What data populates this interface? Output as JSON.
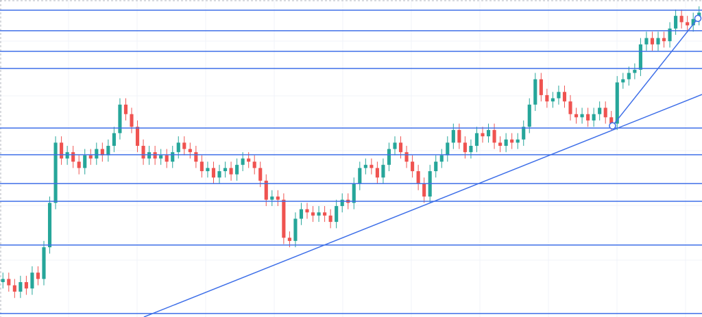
{
  "chart_data": {
    "type": "candlestick",
    "xlim": [
      0,
      120
    ],
    "ylim": [
      0,
      100
    ],
    "up_color": "#26a69a",
    "down_color": "#ef5350",
    "line_color": "#3d6ee8",
    "open": [
      11,
      12,
      10,
      8,
      11,
      9,
      14,
      12,
      22,
      36,
      55,
      50,
      52,
      49,
      47,
      51,
      50,
      53,
      51,
      54,
      58,
      67,
      64,
      60,
      54,
      50,
      52,
      50,
      51,
      49,
      52,
      55,
      53,
      52,
      49,
      46,
      47,
      44,
      46,
      47,
      45,
      48,
      50,
      49,
      47,
      43,
      37,
      38,
      37,
      25,
      24,
      31,
      34,
      33,
      32,
      33,
      32,
      30,
      35,
      37,
      36,
      42,
      47,
      48,
      47,
      44,
      48,
      53,
      55,
      52,
      49,
      46,
      42,
      38,
      46,
      49,
      51,
      55,
      59,
      55,
      52,
      54,
      58,
      57,
      59,
      55,
      54,
      56,
      55,
      56,
      60,
      67,
      75,
      70,
      68,
      69,
      71,
      68,
      64,
      63,
      64,
      62,
      64,
      66,
      63,
      61,
      74,
      75,
      77,
      78,
      86,
      88,
      86,
      88,
      87,
      91,
      95,
      93,
      92,
      94
    ],
    "high": [
      14,
      14,
      12,
      13,
      13,
      16,
      16,
      24,
      38,
      57,
      57,
      54,
      54,
      51,
      53,
      53,
      55,
      55,
      56,
      60,
      69,
      69,
      66,
      62,
      56,
      54,
      54,
      53,
      53,
      54,
      57,
      57,
      55,
      54,
      51,
      49,
      49,
      48,
      49,
      49,
      50,
      52,
      52,
      51,
      49,
      45,
      40,
      40,
      39,
      27,
      33,
      36,
      36,
      35,
      35,
      35,
      34,
      37,
      39,
      39,
      44,
      49,
      50,
      50,
      49,
      50,
      55,
      57,
      57,
      54,
      51,
      48,
      44,
      48,
      51,
      53,
      57,
      61,
      61,
      57,
      56,
      60,
      60,
      61,
      61,
      57,
      58,
      58,
      58,
      62,
      69,
      77,
      77,
      72,
      71,
      73,
      73,
      70,
      66,
      66,
      66,
      66,
      68,
      68,
      65,
      76,
      77,
      79,
      80,
      88,
      90,
      90,
      90,
      90,
      93,
      97,
      97,
      95,
      96,
      98
    ],
    "low": [
      9,
      8,
      6,
      6,
      7,
      7,
      10,
      10,
      20,
      34,
      48,
      48,
      47,
      45,
      45,
      48,
      48,
      49,
      49,
      52,
      56,
      62,
      58,
      52,
      48,
      48,
      48,
      48,
      47,
      47,
      50,
      51,
      50,
      47,
      44,
      44,
      42,
      42,
      44,
      43,
      43,
      46,
      47,
      45,
      41,
      35,
      35,
      35,
      23,
      22,
      22,
      29,
      31,
      30,
      30,
      30,
      28,
      28,
      33,
      34,
      34,
      40,
      45,
      45,
      42,
      42,
      46,
      51,
      50,
      47,
      44,
      40,
      36,
      36,
      44,
      47,
      49,
      53,
      53,
      50,
      50,
      52,
      55,
      55,
      53,
      52,
      52,
      53,
      53,
      54,
      58,
      65,
      68,
      66,
      66,
      67,
      66,
      62,
      61,
      61,
      60,
      60,
      62,
      61,
      59,
      59,
      72,
      73,
      75,
      76,
      84,
      84,
      84,
      85,
      85,
      89,
      91,
      90,
      90,
      92
    ],
    "close": [
      12,
      10,
      8,
      11,
      9,
      14,
      12,
      22,
      36,
      55,
      50,
      52,
      49,
      47,
      51,
      50,
      53,
      51,
      54,
      58,
      67,
      64,
      60,
      54,
      50,
      52,
      50,
      51,
      49,
      52,
      55,
      53,
      52,
      49,
      46,
      47,
      44,
      46,
      47,
      45,
      48,
      50,
      49,
      47,
      43,
      37,
      38,
      37,
      25,
      24,
      31,
      34,
      33,
      32,
      33,
      32,
      30,
      35,
      37,
      36,
      42,
      47,
      48,
      47,
      44,
      48,
      53,
      55,
      52,
      49,
      46,
      42,
      38,
      46,
      49,
      51,
      55,
      59,
      55,
      52,
      54,
      58,
      57,
      59,
      55,
      54,
      56,
      55,
      56,
      60,
      67,
      75,
      70,
      68,
      69,
      71,
      68,
      64,
      63,
      64,
      62,
      64,
      66,
      63,
      61,
      74,
      75,
      77,
      78,
      86,
      88,
      86,
      88,
      87,
      91,
      95,
      93,
      92,
      94,
      96
    ],
    "levels": [
      96.8,
      90.3,
      83.8,
      78.4,
      59.6,
      51.2,
      42.1,
      36.5,
      22.7,
      1.1
    ],
    "trendlines": [
      {
        "x": [
          24.6,
          120
        ],
        "y": [
          0,
          70.2
        ]
      },
      {
        "x": [
          104.7,
          119.3
        ],
        "y": [
          60.3,
          94.2
        ]
      }
    ]
  }
}
